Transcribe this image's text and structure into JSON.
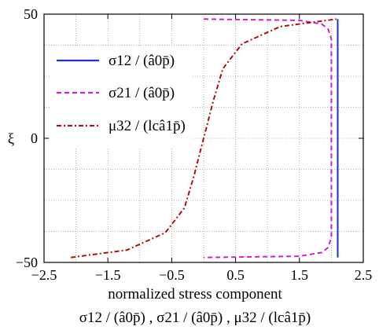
{
  "chart_data": {
    "type": "line",
    "xlabel": "normalized stress component",
    "xlabel_formula": "σ12 / (â0p̄) , σ21 / (â0p̄) , μ32 / (lcâ1p̄)",
    "ylabel": "ξ",
    "xlim": [
      -2.5,
      2.5
    ],
    "ylim": [
      -50,
      50
    ],
    "xticks": [
      "−2.5",
      "−1.5",
      "−0.5",
      "0.5",
      "1.5",
      "2.5"
    ],
    "xtick_values": [
      -2.5,
      -1.5,
      -0.5,
      0.5,
      1.5,
      2.5
    ],
    "yticks": [
      "50",
      "0",
      "−50"
    ],
    "ytick_values": [
      50,
      0,
      -50
    ],
    "grid": true,
    "legend_position": "top-left",
    "series": [
      {
        "name": "σ12 / (â0p̄)",
        "color": "#1f2fd4",
        "style": "solid",
        "x": [
          2.1,
          2.1
        ],
        "y": [
          48,
          -48
        ]
      },
      {
        "name": "σ21 / (â0p̄)",
        "color": "#cc22cc",
        "style": "dashed",
        "x": [
          0.0,
          1.5,
          1.85,
          1.95,
          2.0,
          2.0,
          2.0,
          1.95,
          1.85,
          1.5,
          0.0
        ],
        "y": [
          48,
          47.5,
          46,
          44,
          40,
          0,
          -40,
          -44,
          -46,
          -47.5,
          -48
        ]
      },
      {
        "name": "μ32 / (lcâ1p̄)",
        "color": "#aa1111",
        "style": "dashdot",
        "x": [
          -2.08,
          -1.2,
          -0.6,
          -0.3,
          -0.15,
          -0.05,
          0.0,
          0.05,
          0.15,
          0.3,
          0.6,
          1.2,
          2.08
        ],
        "y": [
          -48,
          -45,
          -38,
          -28,
          -15,
          -5,
          0,
          5,
          15,
          28,
          38,
          45,
          48
        ]
      }
    ]
  }
}
